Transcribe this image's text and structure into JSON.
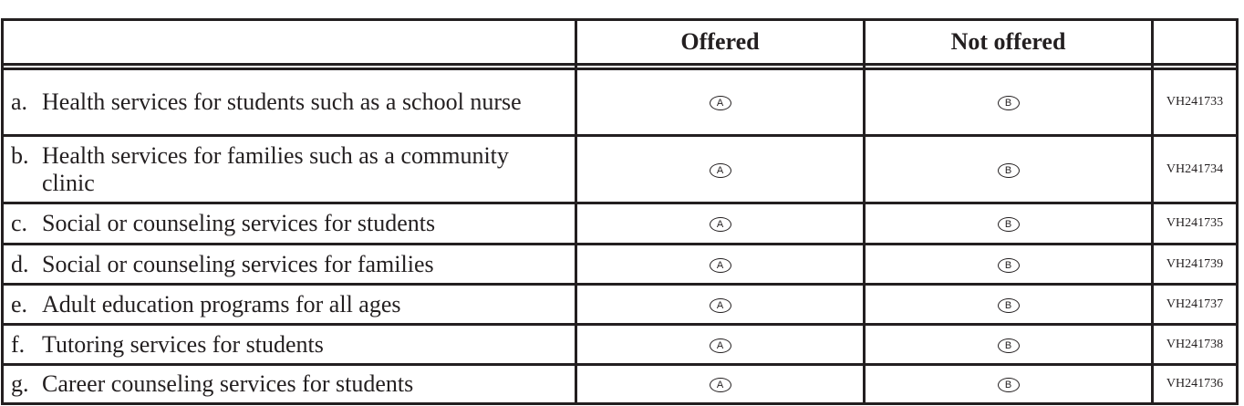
{
  "header": {
    "col_item": "",
    "col_offered": "Offered",
    "col_not_offered": "Not offered",
    "col_code": ""
  },
  "bubbles": {
    "offered": "A",
    "not_offered": "B"
  },
  "rows": [
    {
      "letter": "a.",
      "text": "Health services for students such as a school nurse",
      "code": "VH241733"
    },
    {
      "letter": "b.",
      "text": "Health services for families such as a community clinic",
      "code": "VH241734"
    },
    {
      "letter": "c.",
      "text": "Social or counseling services for students",
      "code": "VH241735"
    },
    {
      "letter": "d.",
      "text": "Social or counseling services for families",
      "code": "VH241739"
    },
    {
      "letter": "e.",
      "text": "Adult education programs for all ages",
      "code": "VH241737"
    },
    {
      "letter": "f.",
      "text": "Tutoring services for students",
      "code": "VH241738"
    },
    {
      "letter": "g.",
      "text": "Career counseling services for students",
      "code": "VH241736"
    }
  ]
}
